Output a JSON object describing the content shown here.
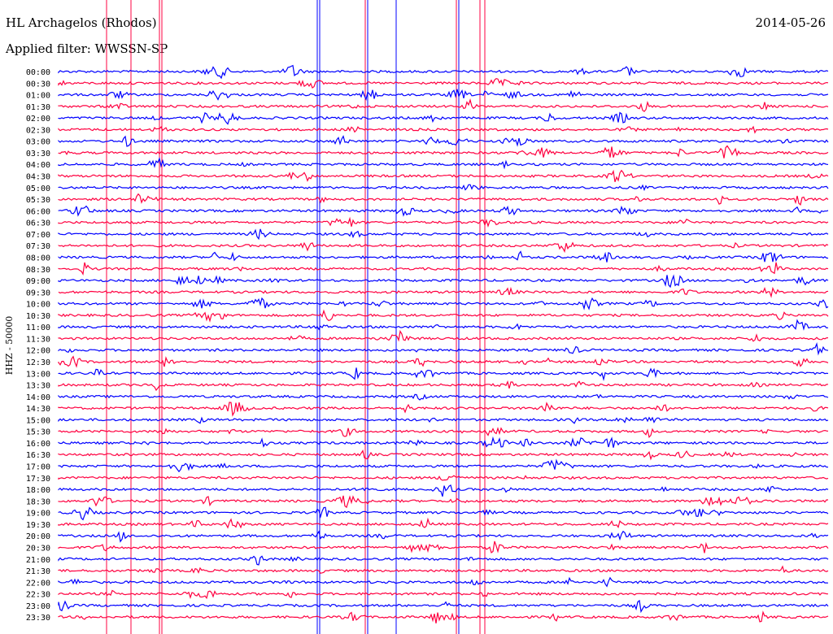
{
  "header": {
    "station": "HL Archagelos (Rhodos)",
    "filter": "Applied filter: WWSSN-SP",
    "date": "2014-05-26"
  },
  "chart_data": {
    "type": "line",
    "title": "HL Archagelos (Rhodos)",
    "subtitle": "Applied filter: WWSSN-SP",
    "ylabel": "HHZ - 50000",
    "xlabel": "",
    "grid": false,
    "legend": "none",
    "row_labels": [
      "00:00",
      "00:30",
      "01:00",
      "01:30",
      "02:00",
      "02:30",
      "03:00",
      "03:30",
      "04:00",
      "04:30",
      "05:00",
      "05:30",
      "06:00",
      "06:30",
      "07:00",
      "07:30",
      "08:00",
      "08:30",
      "09:00",
      "09:30",
      "10:00",
      "10:30",
      "11:00",
      "11:30",
      "12:00",
      "12:30",
      "13:00",
      "13:30",
      "14:00",
      "14:30",
      "15:00",
      "15:30",
      "16:00",
      "16:30",
      "17:00",
      "17:30",
      "18:00",
      "18:30",
      "19:00",
      "19:30",
      "20:00",
      "20:30",
      "21:00",
      "21:30",
      "22:00",
      "22:30",
      "23:00",
      "23:30"
    ],
    "trace_colors": [
      "#0000ff",
      "#ff0040"
    ]
  }
}
